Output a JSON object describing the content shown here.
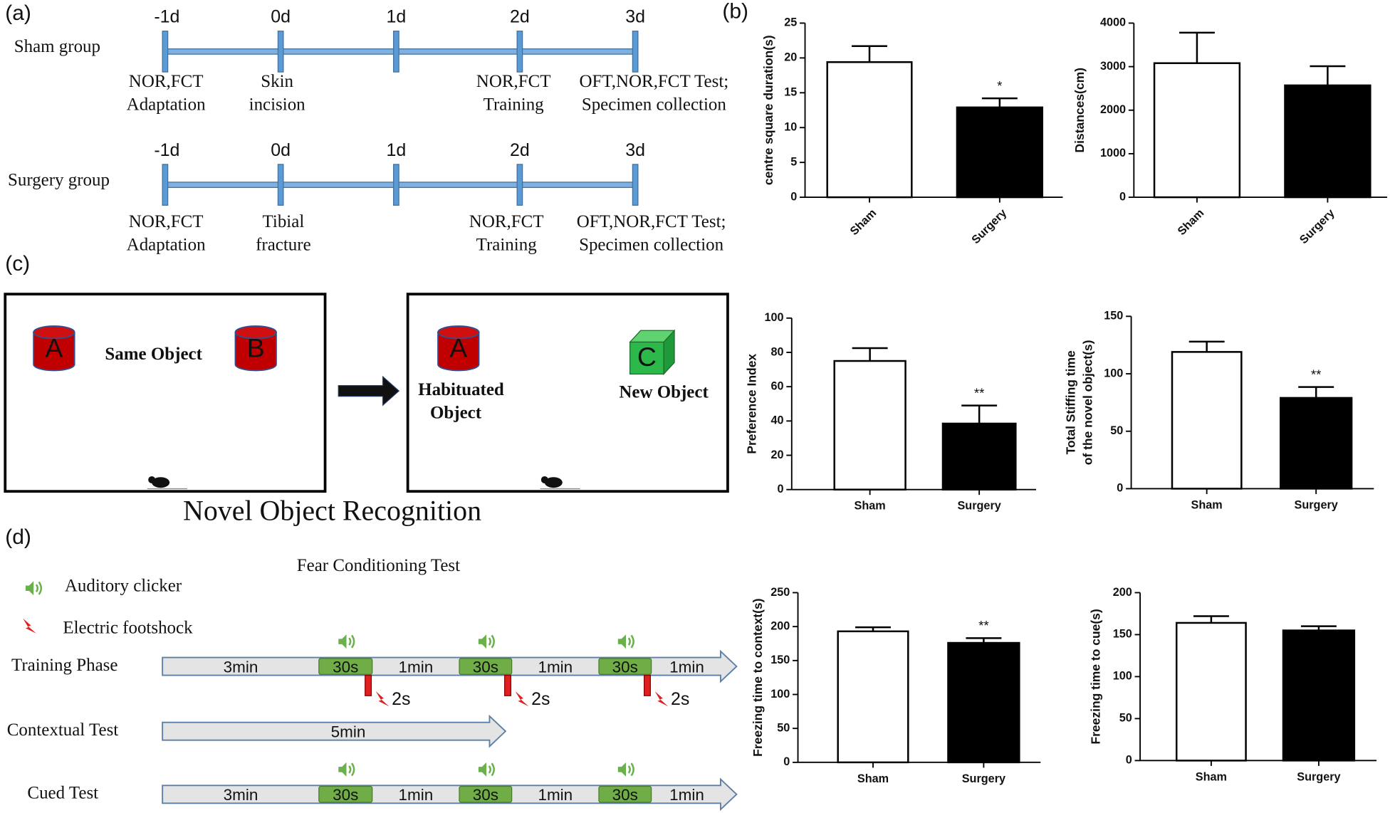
{
  "panel_labels": [
    "(a)",
    "(b)",
    "(c)",
    "(d)"
  ],
  "timelines": [
    {
      "group": "Sham group",
      "days": [
        "-1d",
        "0d",
        "1d",
        "2d",
        "3d"
      ],
      "events": [
        [
          "NOR,FCT",
          "Adaptation"
        ],
        [
          "Skin",
          "incision"
        ],
        [
          "NOR,FCT",
          "Training"
        ],
        [
          "OFT,NOR,FCT Test;",
          "Specimen collection"
        ]
      ]
    },
    {
      "group": "Surgery group",
      "days": [
        "-1d",
        "0d",
        "1d",
        "2d",
        "3d"
      ],
      "events": [
        [
          "NOR,FCT",
          "Adaptation"
        ],
        [
          "Tibial",
          "fracture"
        ],
        [
          "NOR,FCT",
          "Training"
        ],
        [
          "OFT,NOR,FCT Test;",
          "Specimen collection"
        ]
      ]
    }
  ],
  "nor": {
    "title": "Novel Object Recognition",
    "objects": [
      "A",
      "B",
      "A",
      "C"
    ],
    "same_object": "Same Object",
    "habituated_object": [
      "Habituated",
      "Object"
    ],
    "new_object": "New Object"
  },
  "fear": {
    "title": "Fear Conditioning Test",
    "legend": [
      "Auditory clicker",
      "Electric footshock"
    ],
    "phases": [
      {
        "name": "Training Phase",
        "segments": [
          "3min",
          "30s",
          "1min",
          "30s",
          "1min",
          "30s",
          "1min"
        ],
        "shocks": [
          "2s",
          "2s",
          "2s"
        ]
      },
      {
        "name": "Contextual Test",
        "segments": [
          "5min"
        ]
      },
      {
        "name": "Cued Test",
        "segments": [
          "3min",
          "30s",
          "1min",
          "30s",
          "1min",
          "30s",
          "1min"
        ]
      }
    ]
  },
  "chart_data": [
    {
      "type": "bar",
      "ylabel": [
        "centre square duration(s)"
      ],
      "categories": [
        "Sham",
        "Surgery"
      ],
      "values": [
        19.4,
        12.9
      ],
      "errors": [
        2.3,
        1.3
      ],
      "significance": [
        null,
        "*"
      ],
      "colors": [
        "#ffffff",
        "#000000"
      ],
      "ylim": [
        0,
        25
      ],
      "yticks": [
        0,
        5,
        10,
        15,
        20,
        25
      ]
    },
    {
      "type": "bar",
      "ylabel": [
        "Distances(cm)"
      ],
      "categories": [
        "Sham",
        "Surgery"
      ],
      "values": [
        3080,
        2570
      ],
      "errors": [
        700,
        440
      ],
      "significance": [
        null,
        null
      ],
      "colors": [
        "#ffffff",
        "#000000"
      ],
      "ylim": [
        0,
        4000
      ],
      "yticks": [
        0,
        1000,
        2000,
        3000,
        4000
      ]
    },
    {
      "type": "bar",
      "ylabel": [
        "Preference Index"
      ],
      "categories": [
        "Sham",
        "Surgery"
      ],
      "values": [
        75,
        38.5
      ],
      "errors": [
        7.5,
        10.5
      ],
      "significance": [
        null,
        "**"
      ],
      "colors": [
        "#ffffff",
        "#000000"
      ],
      "ylim": [
        0,
        100
      ],
      "yticks": [
        0,
        20,
        40,
        60,
        80,
        100
      ]
    },
    {
      "type": "bar",
      "ylabel": [
        "Total Stiffing time",
        "of the novel object(s)"
      ],
      "categories": [
        "Sham",
        "Surgery"
      ],
      "values": [
        119,
        79
      ],
      "errors": [
        9,
        9.5
      ],
      "significance": [
        null,
        "**"
      ],
      "colors": [
        "#ffffff",
        "#000000"
      ],
      "ylim": [
        0,
        150
      ],
      "yticks": [
        0,
        50,
        100,
        150
      ]
    },
    {
      "type": "bar",
      "ylabel": [
        "Freezing  time  to context(s)"
      ],
      "categories": [
        "Sham",
        "Surgery"
      ],
      "values": [
        193,
        176
      ],
      "errors": [
        6,
        7
      ],
      "significance": [
        null,
        "**"
      ],
      "colors": [
        "#ffffff",
        "#000000"
      ],
      "ylim": [
        0,
        250
      ],
      "yticks": [
        0,
        50,
        100,
        150,
        200,
        250
      ]
    },
    {
      "type": "bar",
      "ylabel": [
        "Freezing  time  to cue(s)"
      ],
      "categories": [
        "Sham",
        "Surgery"
      ],
      "values": [
        164,
        155
      ],
      "errors": [
        8,
        5
      ],
      "significance": [
        null,
        null
      ],
      "colors": [
        "#ffffff",
        "#000000"
      ],
      "ylim": [
        0,
        200
      ],
      "yticks": [
        0,
        50,
        100,
        150,
        200
      ]
    }
  ]
}
